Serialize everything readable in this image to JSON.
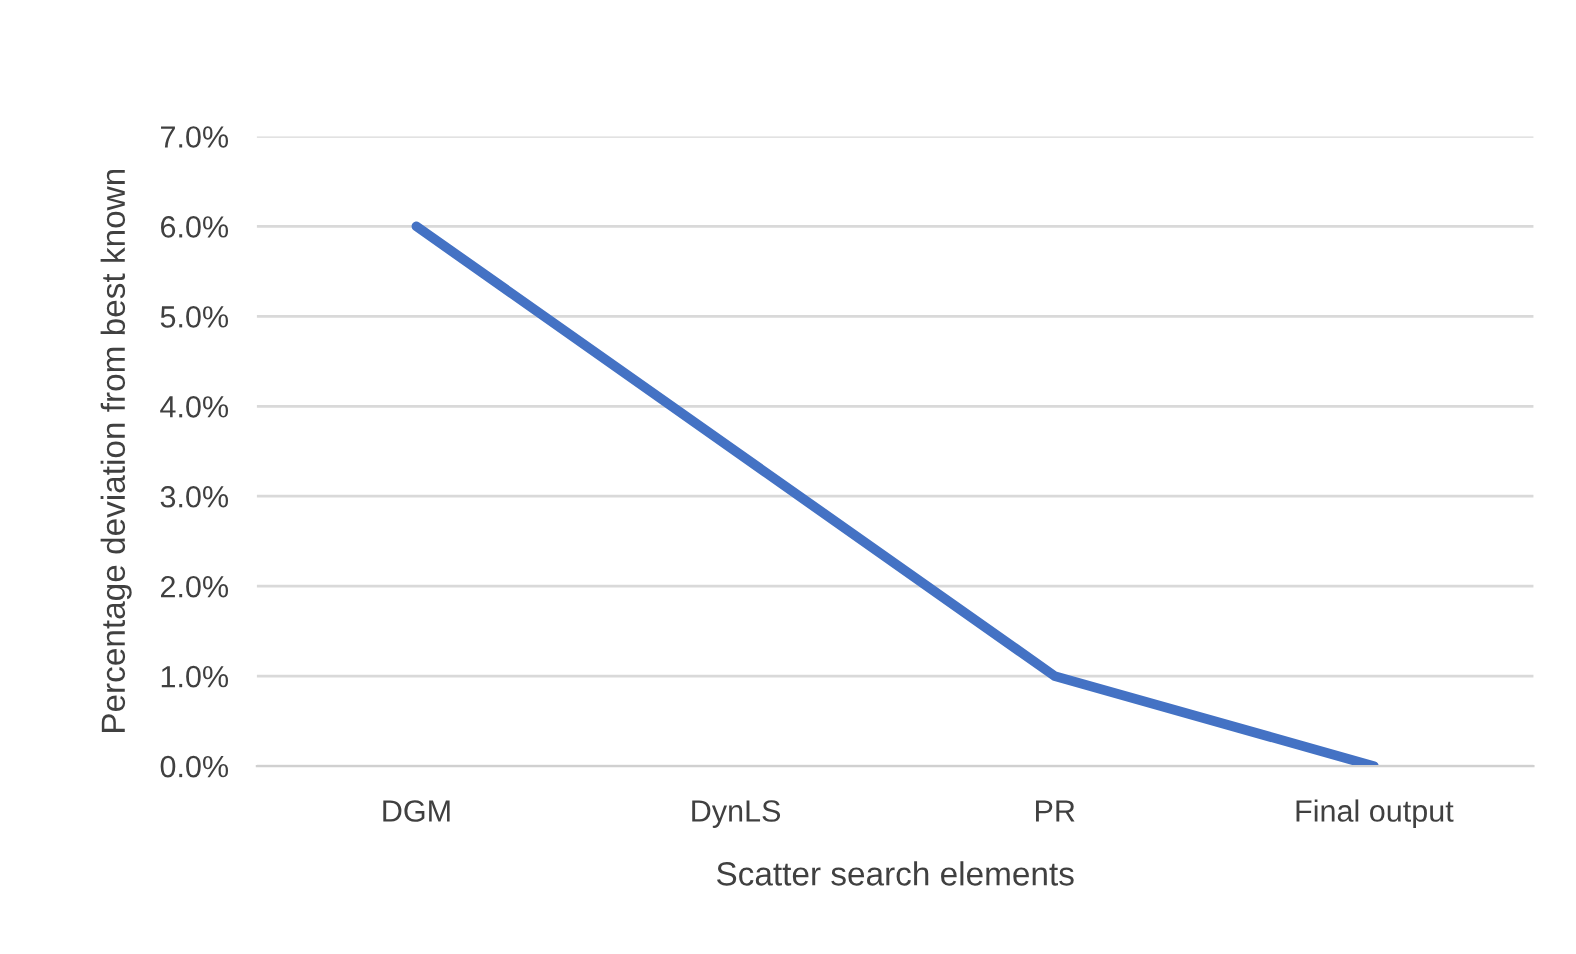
{
  "chart_data": {
    "type": "line",
    "xlabel": "Scatter search elements",
    "ylabel": "Percentage deviation from best known",
    "categories": [
      "DGM",
      "DynLS",
      "PR",
      "Final output"
    ],
    "series": [
      {
        "color": "#4472c4",
        "values": [
          6.0,
          3.5,
          1.0,
          0.0
        ]
      }
    ],
    "ylim": [
      0,
      7
    ],
    "yticks": [
      {
        "value": 0,
        "label": "0.0%"
      },
      {
        "value": 1,
        "label": "1.0%"
      },
      {
        "value": 2,
        "label": "2.0%"
      },
      {
        "value": 3,
        "label": "3.0%"
      },
      {
        "value": 4,
        "label": "4.0%"
      },
      {
        "value": 5,
        "label": "5.0%"
      },
      {
        "value": 6,
        "label": "6.0%"
      },
      {
        "value": 7,
        "label": "7.0%"
      }
    ],
    "grid": "y",
    "marker": "none",
    "line_style": "solid"
  }
}
